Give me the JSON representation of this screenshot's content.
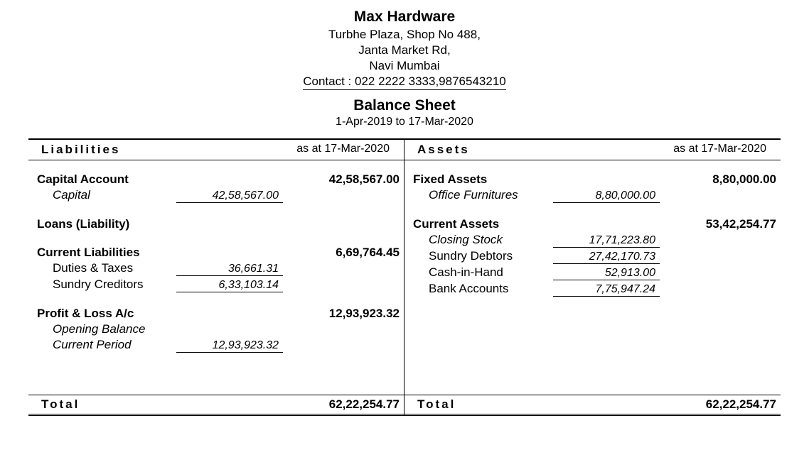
{
  "header": {
    "company_name": "Max Hardware",
    "address_line1": "Turbhe Plaza, Shop No 488,",
    "address_line2": "Janta Market Rd,",
    "address_line3": "Navi Mumbai",
    "contact": "Contact : 022 2222 3333,9876543210",
    "report_title": "Balance Sheet",
    "date_range": "1-Apr-2019 to 17-Mar-2020"
  },
  "columns": {
    "left_header": "Liabilities",
    "right_header": "Assets",
    "as_at": "as at 17-Mar-2020"
  },
  "liabilities": {
    "capital_account": {
      "label": "Capital Account",
      "value": "42,58,567.00",
      "sub": {
        "capital_label": "Capital",
        "capital_value": "42,58,567.00"
      }
    },
    "loans": {
      "label": "Loans (Liability)"
    },
    "current_liabilities": {
      "label": "Current Liabilities",
      "value": "6,69,764.45",
      "sub": {
        "duties_label": "Duties & Taxes",
        "duties_value": "36,661.31",
        "creditors_label": "Sundry Creditors",
        "creditors_value": "6,33,103.14"
      }
    },
    "pl": {
      "label": "Profit & Loss A/c",
      "value": "12,93,923.32",
      "sub": {
        "opening_label": "Opening Balance",
        "current_label": "Current Period",
        "current_value": "12,93,923.32"
      }
    },
    "total_label": "Total",
    "total_value": "62,22,254.77"
  },
  "assets": {
    "fixed_assets": {
      "label": "Fixed Assets",
      "value": "8,80,000.00",
      "sub": {
        "office_label": "Office Furnitures",
        "office_value": "8,80,000.00"
      }
    },
    "current_assets": {
      "label": "Current Assets",
      "value": "53,42,254.77",
      "sub": {
        "closing_label": "Closing Stock",
        "closing_value": "17,71,223.80",
        "debtors_label": "Sundry Debtors",
        "debtors_value": "27,42,170.73",
        "cash_label": "Cash-in-Hand",
        "cash_value": "52,913.00",
        "bank_label": "Bank Accounts",
        "bank_value": "7,75,947.24"
      }
    },
    "total_label": "Total",
    "total_value": "62,22,254.77"
  }
}
